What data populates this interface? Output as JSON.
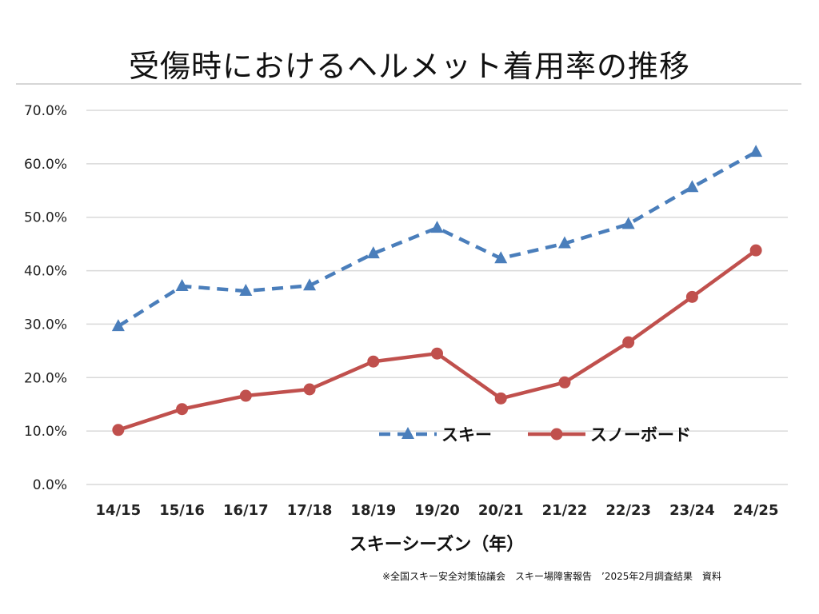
{
  "chart_data": {
    "type": "line",
    "title": "受傷時におけるヘルメット着用率の推移",
    "xlabel": "スキーシーズン（年）",
    "ylabel": "",
    "ylim": [
      0,
      70
    ],
    "yticks": [
      "0.0%",
      "10.0%",
      "20.0%",
      "30.0%",
      "40.0%",
      "50.0%",
      "60.0%",
      "70.0%"
    ],
    "grid": true,
    "legend_position": "lower-right inside plot",
    "categories": [
      "14/15",
      "15/16",
      "16/17",
      "17/18",
      "18/19",
      "19/20",
      "20/21",
      "21/22",
      "22/23",
      "23/24",
      "24/25"
    ],
    "series": [
      {
        "name": "スキー",
        "style": "dashed",
        "marker": "triangle",
        "color": "#4a7ebb",
        "values": [
          29.6,
          37.1,
          36.2,
          37.2,
          43.2,
          48.0,
          42.3,
          45.1,
          48.7,
          55.6,
          62.2
        ]
      },
      {
        "name": "スノーボード",
        "style": "solid",
        "marker": "circle",
        "color": "#c0504d",
        "values": [
          10.2,
          14.1,
          16.6,
          17.8,
          23.0,
          24.5,
          16.1,
          19.1,
          26.6,
          35.1,
          43.8
        ]
      }
    ]
  },
  "footnote": "※全国スキー安全対策協議会　スキー場障害報告　’2025年2月調査結果　資料"
}
